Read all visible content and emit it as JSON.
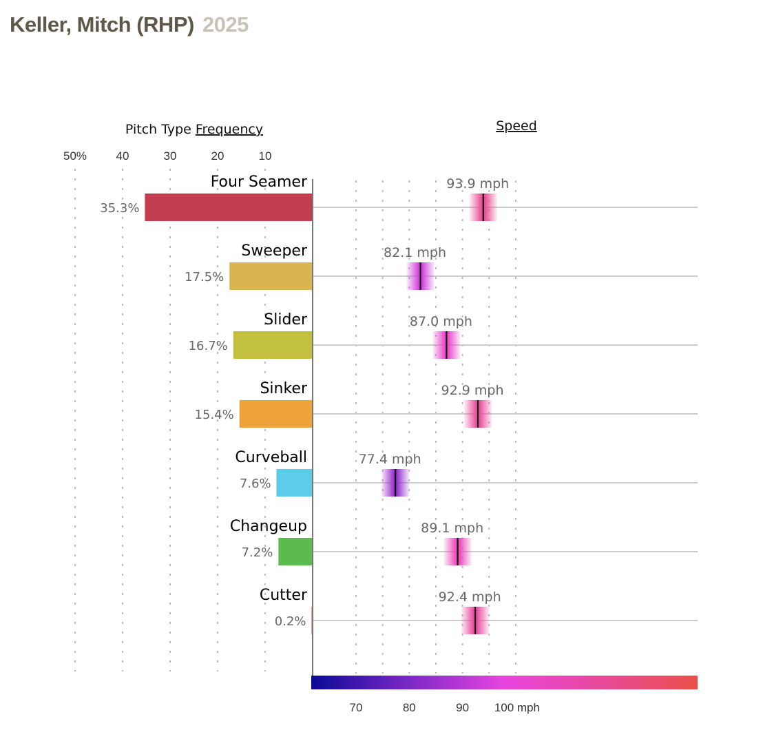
{
  "header": {
    "player": "Keller, Mitch (RHP)",
    "year": "2025"
  },
  "chart_data": [
    {
      "type": "bar",
      "title": "Pitch Type",
      "title_underlined": "Frequency",
      "orientation": "horizontal-left",
      "xlabel": "",
      "ylabel": "",
      "xlim": [
        0,
        50
      ],
      "x_ticks": [
        {
          "value": 50,
          "label": "50%"
        },
        {
          "value": 40,
          "label": "40"
        },
        {
          "value": 30,
          "label": "30"
        },
        {
          "value": 20,
          "label": "20"
        },
        {
          "value": 10,
          "label": "10"
        }
      ],
      "grid": true,
      "categories": [
        "Four Seamer",
        "Sweeper",
        "Slider",
        "Sinker",
        "Curveball",
        "Changeup",
        "Cutter"
      ],
      "values": [
        35.3,
        17.5,
        16.7,
        15.4,
        7.6,
        7.2,
        0.2
      ],
      "labels": [
        "35.3%",
        "17.5%",
        "16.7%",
        "15.4%",
        "7.6%",
        "7.2%",
        "0.2%"
      ],
      "colors": [
        "#c23d4f",
        "#d8b54f",
        "#c3c040",
        "#efa23a",
        "#5ccde9",
        "#5bbb4f",
        "#d24a34"
      ]
    },
    {
      "type": "scatter",
      "title": "Speed",
      "xlabel": "",
      "xlim": [
        66,
        102
      ],
      "x_ticks": [
        {
          "value": 70,
          "label": "70"
        },
        {
          "value": 80,
          "label": "80"
        },
        {
          "value": 90,
          "label": "90"
        },
        {
          "value": 100,
          "label": "100 mph"
        }
      ],
      "gridlines": [
        70,
        75,
        80,
        85,
        90,
        95,
        100
      ],
      "grid": true,
      "categories": [
        "Four Seamer",
        "Sweeper",
        "Slider",
        "Sinker",
        "Curveball",
        "Changeup",
        "Cutter"
      ],
      "values": [
        93.9,
        82.1,
        87.0,
        92.9,
        77.4,
        89.1,
        92.4
      ],
      "labels": [
        "93.9 mph",
        "82.1 mph",
        "87.0 mph",
        "92.9 mph",
        "77.4 mph",
        "89.1 mph",
        "92.4 mph"
      ],
      "colorscale": {
        "min": 66,
        "max": 102,
        "stops": [
          "#0a0a96",
          "#7a28c4",
          "#e845e0",
          "#e84a9a",
          "#e8504a"
        ]
      }
    }
  ]
}
